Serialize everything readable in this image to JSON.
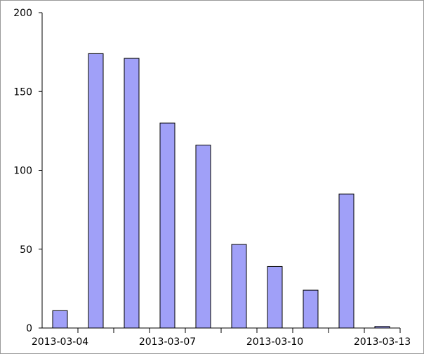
{
  "chart_data": {
    "type": "bar",
    "categories": [
      "2013-03-04",
      null,
      null,
      "2013-03-07",
      null,
      null,
      "2013-03-10",
      null,
      null,
      "2013-03-13"
    ],
    "values": [
      11,
      174,
      171,
      130,
      116,
      53,
      39,
      24,
      85,
      1
    ],
    "color": "#a0a0f8",
    "ylim": [
      0,
      200
    ],
    "yticks": [
      0,
      50,
      100,
      150,
      200
    ],
    "grid": false
  }
}
